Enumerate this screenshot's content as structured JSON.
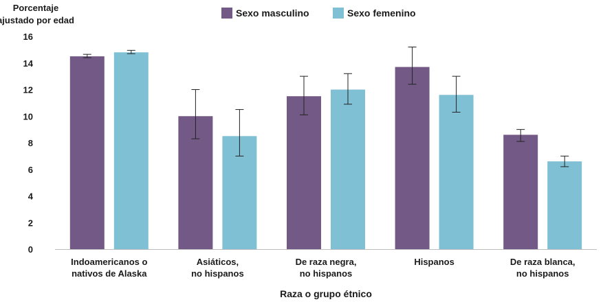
{
  "chart_data": {
    "type": "bar",
    "ylabel": [
      "Porcentaje",
      "ajustado por edad"
    ],
    "xlabel": "Raza o grupo étnico",
    "ylim": [
      0,
      16
    ],
    "yticks": [
      0,
      2,
      4,
      6,
      8,
      10,
      12,
      14,
      16
    ],
    "categories": [
      [
        "Indoamericanos o",
        "nativos de Alaska"
      ],
      [
        "Asiáticos,",
        "no hispanos"
      ],
      [
        "De raza negra,",
        "no hispanos"
      ],
      [
        "Hispanos"
      ],
      [
        "De raza blanca,",
        "no hispanos"
      ]
    ],
    "series": [
      {
        "name": "Sexo masculino",
        "color": "#735a86",
        "values": [
          14.5,
          10.0,
          11.5,
          13.7,
          8.6
        ],
        "error_low": [
          14.4,
          8.3,
          10.1,
          12.4,
          8.1
        ],
        "error_high": [
          14.65,
          12.0,
          13.0,
          15.2,
          9.0
        ]
      },
      {
        "name": "Sexo femenino",
        "color": "#7fc0d4",
        "values": [
          14.8,
          8.5,
          12.0,
          11.6,
          6.6
        ],
        "error_low": [
          14.7,
          7.0,
          10.9,
          10.3,
          6.2
        ],
        "error_high": [
          14.95,
          10.5,
          13.2,
          13.0,
          7.0
        ]
      }
    ],
    "legend_position": "top-center",
    "grid": false
  }
}
